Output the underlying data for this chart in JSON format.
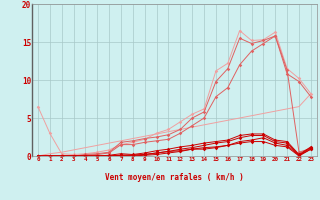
{
  "background_color": "#cff0f0",
  "grid_color": "#a8c8c8",
  "x_values": [
    0,
    1,
    2,
    3,
    4,
    5,
    6,
    7,
    8,
    9,
    10,
    11,
    12,
    13,
    14,
    15,
    16,
    17,
    18,
    19,
    20,
    21,
    22,
    23
  ],
  "line_light1_y": [
    6.5,
    3.0,
    0.3,
    0.2,
    0.3,
    0.5,
    0.8,
    1.5,
    1.8,
    2.2,
    3.0,
    3.5,
    4.5,
    5.5,
    6.2,
    11.2,
    12.2,
    16.5,
    15.2,
    15.3,
    16.3,
    11.5,
    10.2,
    8.2
  ],
  "line_light2_y": [
    0.0,
    0.3,
    0.5,
    0.8,
    1.1,
    1.4,
    1.7,
    2.0,
    2.3,
    2.6,
    2.9,
    3.2,
    3.5,
    3.8,
    4.1,
    4.4,
    4.7,
    5.0,
    5.3,
    5.6,
    5.9,
    6.2,
    6.5,
    8.2
  ],
  "line_medium1_y": [
    0.0,
    0.0,
    0.0,
    0.0,
    0.2,
    0.3,
    0.5,
    1.8,
    2.0,
    2.3,
    2.5,
    2.8,
    3.5,
    5.0,
    5.8,
    9.8,
    11.5,
    15.5,
    14.8,
    15.2,
    15.8,
    10.8,
    9.8,
    7.8
  ],
  "line_medium2_y": [
    0.0,
    0.0,
    0.0,
    0.0,
    0.1,
    0.2,
    0.4,
    1.5,
    1.5,
    1.8,
    2.0,
    2.2,
    3.0,
    4.0,
    5.0,
    7.8,
    9.0,
    12.0,
    13.8,
    14.8,
    15.8,
    11.3,
    0.5,
    1.0
  ],
  "line_dark1_y": [
    0.0,
    0.0,
    0.0,
    0.0,
    0.0,
    0.0,
    0.1,
    0.3,
    0.2,
    0.4,
    0.7,
    0.9,
    1.2,
    1.4,
    1.7,
    1.9,
    2.1,
    2.7,
    2.9,
    2.9,
    2.1,
    1.9,
    0.2,
    1.2
  ],
  "line_dark2_y": [
    0.0,
    0.0,
    0.0,
    0.0,
    0.0,
    0.0,
    0.0,
    0.1,
    0.1,
    0.2,
    0.4,
    0.6,
    0.9,
    1.1,
    1.4,
    1.7,
    1.9,
    2.4,
    2.7,
    2.7,
    1.9,
    1.7,
    0.1,
    1.1
  ],
  "line_dark3_y": [
    0.0,
    0.0,
    0.0,
    0.0,
    0.0,
    0.0,
    0.0,
    0.0,
    0.0,
    0.1,
    0.2,
    0.4,
    0.6,
    0.9,
    1.1,
    1.2,
    1.4,
    1.9,
    2.1,
    2.4,
    1.7,
    1.4,
    0.1,
    0.9
  ],
  "line_dark4_y": [
    0.0,
    0.0,
    0.0,
    0.0,
    0.0,
    0.0,
    0.0,
    0.1,
    0.1,
    0.2,
    0.4,
    0.6,
    0.7,
    0.9,
    0.9,
    1.1,
    1.4,
    1.7,
    1.9,
    1.9,
    1.4,
    1.2,
    0.0,
    0.9
  ],
  "color_light": "#f0a0a0",
  "color_medium": "#e06060",
  "color_dark": "#cc0000",
  "color_vdark": "#aa0000",
  "xlabel": "Vent moyen/en rafales ( km/h )",
  "ylim": [
    0,
    20
  ],
  "xlim": [
    0,
    23
  ]
}
